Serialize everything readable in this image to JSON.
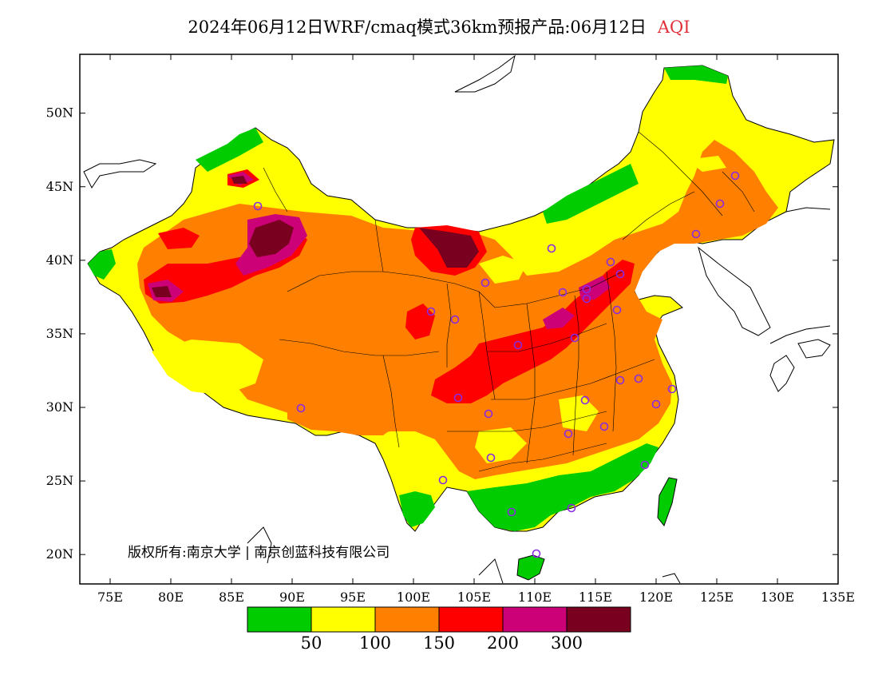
{
  "header": {
    "title": "2024年06月12日WRF/cmaq模式36km预报产品:06月12日",
    "product": "AQI",
    "product_color": "#e0303a"
  },
  "map": {
    "lat_labels": [
      "50N",
      "45N",
      "40N",
      "35N",
      "30N",
      "25N",
      "20N"
    ],
    "lat_values": [
      50,
      45,
      40,
      35,
      30,
      25,
      20
    ],
    "lon_labels": [
      "75E",
      "80E",
      "85E",
      "90E",
      "95E",
      "100E",
      "105E",
      "110E",
      "115E",
      "120E",
      "125E",
      "130E",
      "135E"
    ],
    "lon_values": [
      75,
      80,
      85,
      90,
      95,
      100,
      105,
      110,
      115,
      120,
      125,
      130,
      135
    ],
    "lon_range": [
      72.5,
      135
    ],
    "lat_range": [
      18,
      54
    ],
    "copyright": "版权所有:南京大学 | 南京创蓝科技有限公司",
    "city_marker_color": "#8a2be2"
  },
  "legend": {
    "colors": [
      "#00cc00",
      "#ffff00",
      "#ff8000",
      "#ff0000",
      "#cc0077",
      "#7a0020"
    ],
    "labels": [
      "50",
      "100",
      "150",
      "200",
      "300"
    ]
  }
}
